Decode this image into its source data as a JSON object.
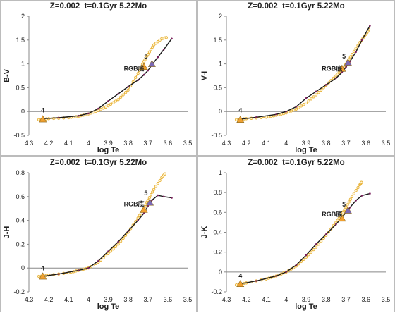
{
  "chart_data": [
    {
      "type": "line",
      "title": "Z=0.002  t=0.1Gyr 5.22Mo",
      "xlabel": "log Te",
      "ylabel": "B-V",
      "xlim": [
        4.3,
        3.5
      ],
      "ylim": [
        -0.5,
        2.0
      ],
      "xticks": [
        "4.3",
        "4.2",
        "4.1",
        "4",
        "3.9",
        "3.8",
        "3.7",
        "3.6",
        "3.5"
      ],
      "yticks": [
        "-0.5",
        "0",
        "0.5",
        "1",
        "1.5",
        "2"
      ],
      "colors": {
        "isochrone": "#e8b33a",
        "track": "#7a1f5c",
        "marker4": "#f0a030",
        "marker5": "#7b68b5"
      },
      "annotations": [
        {
          "text": "4",
          "x": 4.23,
          "y": -0.02
        },
        {
          "text": "5",
          "x": 3.71,
          "y": 1.11
        },
        {
          "text": "RGB底",
          "x": 3.77,
          "y": 0.85
        }
      ],
      "series": [
        {
          "values_x": [
            4.25,
            4.2,
            4.1,
            4.05,
            4.0,
            3.95,
            3.9,
            3.85,
            3.8,
            3.75,
            3.72,
            3.7,
            3.67,
            3.63,
            3.6
          ],
          "values_y": [
            -0.17,
            -0.15,
            -0.13,
            -0.1,
            -0.05,
            0.02,
            0.12,
            0.25,
            0.45,
            0.8,
            1.05,
            1.2,
            1.4,
            1.53,
            1.56
          ]
        },
        {
          "values_x": [
            4.23,
            4.15,
            4.05,
            4.0,
            3.95,
            3.9,
            3.85,
            3.8,
            3.75,
            3.72,
            3.7,
            3.68,
            3.65,
            3.62,
            3.58
          ],
          "values_y": [
            -0.15,
            -0.13,
            -0.09,
            -0.04,
            0.06,
            0.22,
            0.37,
            0.52,
            0.66,
            0.77,
            0.86,
            0.98,
            1.14,
            1.3,
            1.53
          ]
        }
      ],
      "markers": [
        {
          "label": "4",
          "x": 4.23,
          "y": -0.16,
          "shape": "triangle"
        },
        {
          "label": "RGB底",
          "x": 3.72,
          "y": 0.94,
          "shape": "triangle"
        },
        {
          "label": "5",
          "x": 3.68,
          "y": 1.0,
          "shape": "triangle"
        }
      ]
    },
    {
      "type": "line",
      "title": "Z=0.002  t=0.1Gyr 5.22Mo",
      "xlabel": "log Te",
      "ylabel": "V-I",
      "xlim": [
        4.3,
        3.5
      ],
      "ylim": [
        -0.5,
        2.0
      ],
      "xticks": [
        "4.3",
        "4.2",
        "4.1",
        "4",
        "3.9",
        "3.8",
        "3.7",
        "3.6",
        "3.5"
      ],
      "yticks": [
        "-0.5",
        "0",
        "0.5",
        "1",
        "1.5",
        "2"
      ],
      "colors": {
        "isochrone": "#e8b33a",
        "track": "#7a1f5c",
        "marker4": "#f0a030",
        "marker5": "#7b68b5"
      },
      "annotations": [
        {
          "text": "4",
          "x": 4.23,
          "y": -0.02
        },
        {
          "text": "5",
          "x": 3.71,
          "y": 1.11
        },
        {
          "text": "RGB底",
          "x": 3.77,
          "y": 0.85
        }
      ],
      "series": [
        {
          "values_x": [
            4.25,
            4.2,
            4.1,
            4.05,
            4.0,
            3.95,
            3.9,
            3.85,
            3.8,
            3.75,
            3.72,
            3.7,
            3.67,
            3.63,
            3.6,
            3.58
          ],
          "values_y": [
            -0.17,
            -0.15,
            -0.12,
            -0.08,
            -0.03,
            0.05,
            0.18,
            0.35,
            0.55,
            0.75,
            0.88,
            1.0,
            1.2,
            1.45,
            1.62,
            1.75
          ]
        },
        {
          "values_x": [
            4.23,
            4.15,
            4.05,
            4.0,
            3.95,
            3.9,
            3.85,
            3.8,
            3.75,
            3.72,
            3.7,
            3.68,
            3.65,
            3.62,
            3.58
          ],
          "values_y": [
            -0.16,
            -0.12,
            -0.06,
            0.0,
            0.1,
            0.28,
            0.42,
            0.56,
            0.7,
            0.82,
            0.93,
            1.05,
            1.25,
            1.5,
            1.8
          ]
        }
      ],
      "markers": [
        {
          "label": "4",
          "x": 4.23,
          "y": -0.17,
          "shape": "triangle"
        },
        {
          "label": "RGB底",
          "x": 3.72,
          "y": 0.9,
          "shape": "triangle"
        },
        {
          "label": "5",
          "x": 3.69,
          "y": 1.03,
          "shape": "triangle"
        }
      ]
    },
    {
      "type": "line",
      "title": "Z=0.002  t=0.1Gyr 5.22Mo",
      "xlabel": "log Te",
      "ylabel": "J-H",
      "xlim": [
        4.3,
        3.5
      ],
      "ylim": [
        -0.2,
        0.8
      ],
      "xticks": [
        "4.3",
        "4.2",
        "4.1",
        "4",
        "3.9",
        "3.8",
        "3.7",
        "3.6",
        "3.5"
      ],
      "yticks": [
        "-0.2",
        "0",
        "0.2",
        "0.4",
        "0.6",
        "0.8"
      ],
      "colors": {
        "isochrone": "#e8b33a",
        "track": "#7a1f5c",
        "marker4": "#f0a030",
        "marker5": "#7b68b5"
      },
      "annotations": [
        {
          "text": "4",
          "x": 4.23,
          "y": -0.02
        },
        {
          "text": "5",
          "x": 3.71,
          "y": 0.61
        },
        {
          "text": "RGB底",
          "x": 3.77,
          "y": 0.52
        }
      ],
      "series": [
        {
          "values_x": [
            4.25,
            4.2,
            4.1,
            4.05,
            4.0,
            3.95,
            3.9,
            3.85,
            3.8,
            3.75,
            3.72,
            3.7,
            3.67,
            3.63,
            3.61
          ],
          "values_y": [
            -0.07,
            -0.06,
            -0.04,
            -0.02,
            0.0,
            0.05,
            0.12,
            0.2,
            0.3,
            0.42,
            0.5,
            0.57,
            0.66,
            0.76,
            0.8
          ]
        },
        {
          "values_x": [
            4.23,
            4.15,
            4.05,
            4.0,
            3.95,
            3.9,
            3.85,
            3.8,
            3.75,
            3.72,
            3.7,
            3.68,
            3.65,
            3.62,
            3.58
          ],
          "values_y": [
            -0.07,
            -0.05,
            -0.02,
            0.0,
            0.06,
            0.14,
            0.22,
            0.31,
            0.4,
            0.46,
            0.52,
            0.57,
            0.61,
            0.6,
            0.59
          ]
        }
      ],
      "markers": [
        {
          "label": "4",
          "x": 4.23,
          "y": -0.07,
          "shape": "triangle"
        },
        {
          "label": "RGB底",
          "x": 3.72,
          "y": 0.49,
          "shape": "triangle"
        },
        {
          "label": "5",
          "x": 3.69,
          "y": 0.55,
          "shape": "triangle"
        }
      ]
    },
    {
      "type": "line",
      "title": "Z=0.002  t=0.1Gyr 5.22Mo",
      "xlabel": "log Te",
      "ylabel": "J-K",
      "xlim": [
        4.3,
        3.5
      ],
      "ylim": [
        -0.2,
        1.0
      ],
      "xticks": [
        "4.3",
        "4.2",
        "4.1",
        "4",
        "3.9",
        "3.8",
        "3.7",
        "3.6",
        "3.5"
      ],
      "yticks": [
        "-0.2",
        "0",
        "0.2",
        "0.4",
        "0.6",
        "0.8",
        "1"
      ],
      "colors": {
        "isochrone": "#e8b33a",
        "track": "#7a1f5c",
        "marker4": "#f0a030",
        "marker5": "#7b68b5"
      },
      "annotations": [
        {
          "text": "4",
          "x": 4.23,
          "y": -0.06
        },
        {
          "text": "5",
          "x": 3.71,
          "y": 0.66
        },
        {
          "text": "RGB底",
          "x": 3.77,
          "y": 0.56
        }
      ],
      "series": [
        {
          "values_x": [
            4.25,
            4.2,
            4.1,
            4.05,
            4.0,
            3.95,
            3.9,
            3.85,
            3.8,
            3.75,
            3.72,
            3.7,
            3.67,
            3.63,
            3.62
          ],
          "values_y": [
            -0.13,
            -0.11,
            -0.07,
            -0.04,
            0.0,
            0.06,
            0.15,
            0.25,
            0.37,
            0.5,
            0.58,
            0.65,
            0.76,
            0.88,
            0.91
          ]
        },
        {
          "values_x": [
            4.23,
            4.15,
            4.05,
            4.0,
            3.95,
            3.9,
            3.85,
            3.8,
            3.75,
            3.72,
            3.7,
            3.68,
            3.65,
            3.62,
            3.58
          ],
          "values_y": [
            -0.12,
            -0.09,
            -0.04,
            0.0,
            0.07,
            0.17,
            0.28,
            0.38,
            0.48,
            0.55,
            0.6,
            0.65,
            0.72,
            0.77,
            0.79
          ]
        }
      ],
      "markers": [
        {
          "label": "4",
          "x": 4.23,
          "y": -0.12,
          "shape": "triangle"
        },
        {
          "label": "RGB底",
          "x": 3.72,
          "y": 0.54,
          "shape": "triangle"
        },
        {
          "label": "5",
          "x": 3.69,
          "y": 0.62,
          "shape": "triangle"
        }
      ]
    }
  ]
}
